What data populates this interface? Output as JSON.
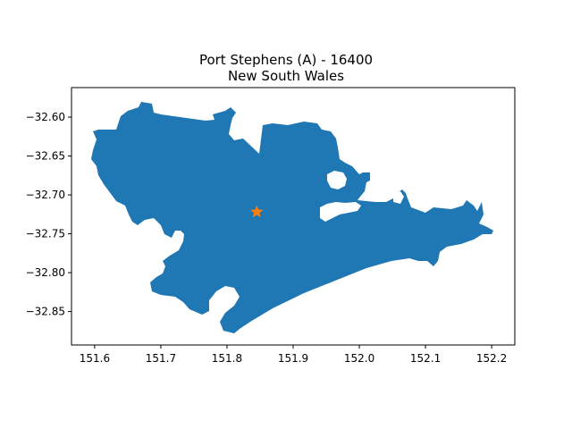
{
  "map": {
    "title_line1": "Port Stephens (A) - 16400",
    "title_line2": "New South Wales",
    "region_color": "#1f77b4",
    "marker": {
      "symbol": "star",
      "color": "#ff7f0e",
      "lon": 151.845,
      "lat": -32.722
    },
    "x_axis": {
      "range": [
        151.565,
        152.235
      ],
      "ticks": [
        151.6,
        151.7,
        151.8,
        151.9,
        152.0,
        152.1,
        152.2
      ],
      "tick_labels": [
        "151.6",
        "151.7",
        "151.8",
        "151.9",
        "152.0",
        "152.1",
        "152.2"
      ]
    },
    "y_axis": {
      "range": [
        -32.893,
        -32.562
      ],
      "ticks": [
        -32.6,
        -32.65,
        -32.7,
        -32.75,
        -32.8,
        -32.85
      ],
      "tick_labels": [
        "−32.60",
        "−32.65",
        "−32.70",
        "−32.75",
        "−32.80",
        "−32.85"
      ]
    }
  }
}
